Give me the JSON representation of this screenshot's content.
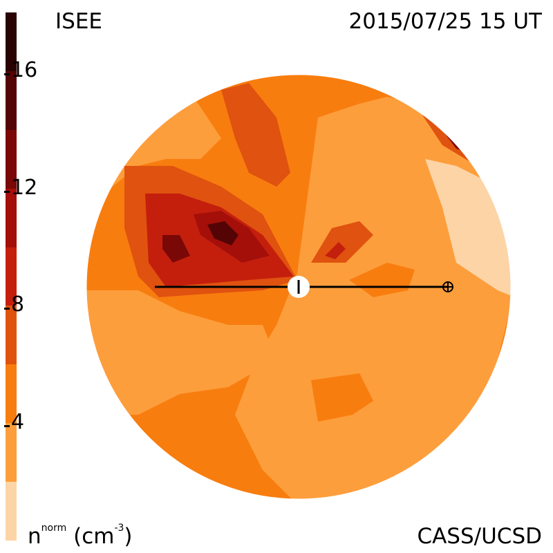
{
  "header": {
    "source": "ISEE",
    "timestamp": "2015/07/25 15 UT"
  },
  "footer": {
    "credit": "CASS/UCSD",
    "unit_base": "n",
    "unit_super": "norm",
    "unit_rest": "(cm",
    "unit_exp": "-3",
    "unit_close": ")"
  },
  "colorbar": {
    "min": 0,
    "max": 18,
    "ticks": [
      "16",
      "12",
      "8",
      "4"
    ],
    "tick_values": [
      16,
      12,
      8,
      4
    ],
    "levels": [
      {
        "from": 0,
        "to": 2,
        "color": "#fdd4a6"
      },
      {
        "from": 2,
        "to": 4,
        "color": "#fd9e3c"
      },
      {
        "from": 4,
        "to": 6,
        "color": "#f87d0f"
      },
      {
        "from": 6,
        "to": 8,
        "color": "#e0520f"
      },
      {
        "from": 8,
        "to": 10,
        "color": "#c41f0d"
      },
      {
        "from": 10,
        "to": 12,
        "color": "#a40f0a"
      },
      {
        "from": 12,
        "to": 14,
        "color": "#7a0806"
      },
      {
        "from": 14,
        "to": 16,
        "color": "#540404"
      },
      {
        "from": 16,
        "to": 18,
        "color": "#2a0202"
      }
    ]
  },
  "map": {
    "sun_symbol": "sun-marker",
    "earth_symbol": "earth-marker"
  }
}
